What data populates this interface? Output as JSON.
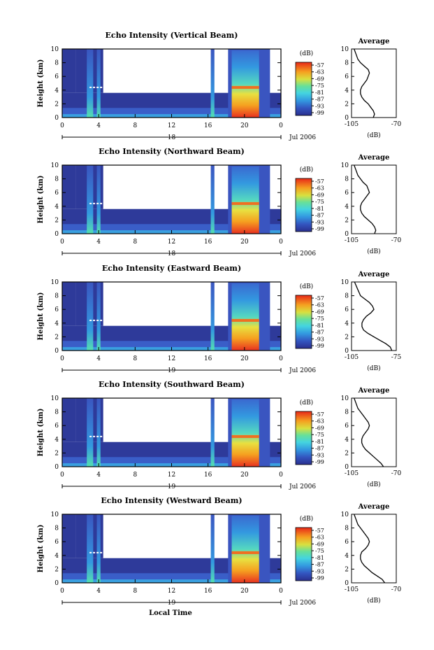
{
  "figure": {
    "xlabel": "Local Time"
  },
  "chart_data": [
    {
      "type": "heatmap",
      "title": "Echo Intensity (Vertical Beam)",
      "ylabel": "Height (km)",
      "ylim": [
        0,
        10
      ],
      "yticks": [
        "0",
        "2",
        "4",
        "6",
        "8",
        "10"
      ],
      "xlim": [
        0,
        24
      ],
      "xticks": [
        "0",
        "4",
        "8",
        "12",
        "16",
        "20",
        "0"
      ],
      "date_mark": "18",
      "date_label": "Jul 2006",
      "colorbar": {
        "title": "(dB)",
        "ticks": [
          "-57",
          "-63",
          "-69",
          "-75",
          "-81",
          "-87",
          "-93",
          "-99"
        ]
      },
      "profile": {
        "title": "Average",
        "xlabel": "(dB)",
        "xticks": [
          "-105",
          "-70"
        ],
        "xlim": [
          -105,
          -70
        ],
        "yticks": [
          "0",
          "2",
          "4",
          "6",
          "8",
          "10"
        ],
        "ylim": [
          0,
          10
        ],
        "x": [
          -88,
          -87,
          -88,
          -90,
          -92,
          -95,
          -97,
          -98,
          -98,
          -97,
          -95,
          -93,
          -92,
          -91,
          -92,
          -95,
          -98,
          -100,
          -101,
          -102,
          -103
        ],
        "y": [
          0,
          0.5,
          1,
          1.5,
          2,
          2.5,
          3,
          3.5,
          4,
          4.5,
          5,
          5.5,
          6,
          6.5,
          7,
          7.5,
          8,
          8.5,
          9,
          9.5,
          10
        ]
      }
    },
    {
      "type": "heatmap",
      "title": "Echo Intensity (Northward Beam)",
      "ylabel": "Height (km)",
      "ylim": [
        0,
        10
      ],
      "yticks": [
        "0",
        "2",
        "4",
        "6",
        "8",
        "10"
      ],
      "xlim": [
        0,
        24
      ],
      "xticks": [
        "0",
        "4",
        "8",
        "12",
        "16",
        "20",
        "0"
      ],
      "date_mark": "18",
      "date_label": "Jul 2006",
      "colorbar": {
        "title": "(dB)",
        "ticks": [
          "-57",
          "-63",
          "-69",
          "-75",
          "-81",
          "-87",
          "-93",
          "-99"
        ]
      },
      "profile": {
        "title": "Average",
        "xlabel": "(dB)",
        "xticks": [
          "-105",
          "-70"
        ],
        "xlim": [
          -105,
          -70
        ],
        "yticks": [
          "0",
          "2",
          "4",
          "6",
          "8",
          "10"
        ],
        "ylim": [
          0,
          10
        ],
        "x": [
          -87,
          -86,
          -87,
          -89,
          -92,
          -95,
          -97,
          -98,
          -98,
          -97,
          -95,
          -93,
          -91,
          -92,
          -93,
          -96,
          -98,
          -100,
          -101,
          -102,
          -103
        ],
        "y": [
          0,
          0.5,
          1,
          1.5,
          2,
          2.5,
          3,
          3.5,
          4,
          4.5,
          5,
          5.5,
          6,
          6.5,
          7,
          7.5,
          8,
          8.5,
          9,
          9.5,
          10
        ]
      }
    },
    {
      "type": "heatmap",
      "title": "Echo Intensity (Eastward Beam)",
      "ylabel": "Height (km)",
      "ylim": [
        0,
        10
      ],
      "yticks": [
        "0",
        "2",
        "4",
        "6",
        "8",
        "10"
      ],
      "xlim": [
        0,
        24
      ],
      "xticks": [
        "0",
        "4",
        "8",
        "12",
        "16",
        "20",
        "0"
      ],
      "date_mark": "19",
      "date_label": "Jul 2006",
      "colorbar": {
        "title": "(dB)",
        "ticks": [
          "-57",
          "-63",
          "-69",
          "-75",
          "-81",
          "-87",
          "-93",
          "-99"
        ]
      },
      "profile": {
        "title": "Average",
        "xlabel": "(dB)",
        "xticks": [
          "-105",
          "-75"
        ],
        "xlim": [
          -105,
          -75
        ],
        "yticks": [
          "0",
          "2",
          "4",
          "6",
          "8",
          "10"
        ],
        "ylim": [
          0,
          10
        ],
        "x": [
          -78,
          -79,
          -82,
          -86,
          -90,
          -94,
          -97,
          -98,
          -98,
          -97,
          -95,
          -92,
          -90,
          -91,
          -93,
          -96,
          -99,
          -100,
          -101,
          -102,
          -103
        ],
        "y": [
          0,
          0.5,
          1,
          1.5,
          2,
          2.5,
          3,
          3.5,
          4,
          4.5,
          5,
          5.5,
          6,
          6.5,
          7,
          7.5,
          8,
          8.5,
          9,
          9.5,
          10
        ]
      }
    },
    {
      "type": "heatmap",
      "title": "Echo Intensity (Southward Beam)",
      "ylabel": "Height (km)",
      "ylim": [
        0,
        10
      ],
      "yticks": [
        "0",
        "2",
        "4",
        "6",
        "8",
        "10"
      ],
      "xlim": [
        0,
        24
      ],
      "xticks": [
        "0",
        "4",
        "8",
        "12",
        "16",
        "20",
        "0"
      ],
      "date_mark": "19",
      "date_label": "Jul 2006",
      "colorbar": {
        "title": "(dB)",
        "ticks": [
          "-57",
          "-63",
          "-69",
          "-75",
          "-81",
          "-87",
          "-93",
          "-99"
        ]
      },
      "profile": {
        "title": "Average",
        "xlabel": "(dB)",
        "xticks": [
          "-105",
          "-70"
        ],
        "xlim": [
          -105,
          -70
        ],
        "yticks": [
          "0",
          "2",
          "4",
          "6",
          "8",
          "10"
        ],
        "ylim": [
          0,
          10
        ],
        "x": [
          -80,
          -82,
          -85,
          -88,
          -91,
          -94,
          -96,
          -97,
          -97,
          -96,
          -94,
          -92,
          -91,
          -92,
          -94,
          -96,
          -98,
          -100,
          -101,
          -102,
          -103
        ],
        "y": [
          0,
          0.5,
          1,
          1.5,
          2,
          2.5,
          3,
          3.5,
          4,
          4.5,
          5,
          5.5,
          6,
          6.5,
          7,
          7.5,
          8,
          8.5,
          9,
          9.5,
          10
        ]
      }
    },
    {
      "type": "heatmap",
      "title": "Echo Intensity (Westward Beam)",
      "ylabel": "Height (km)",
      "ylim": [
        0,
        10
      ],
      "yticks": [
        "0",
        "2",
        "4",
        "6",
        "8",
        "10"
      ],
      "xlim": [
        0,
        24
      ],
      "xticks": [
        "0",
        "4",
        "8",
        "12",
        "16",
        "20",
        "0"
      ],
      "date_mark": "19",
      "date_label": "Jul 2006",
      "colorbar": {
        "title": "(dB)",
        "ticks": [
          "-57",
          "-63",
          "-69",
          "-75",
          "-81",
          "-87",
          "-93",
          "-99"
        ]
      },
      "profile": {
        "title": "Average",
        "xlabel": "(dB)",
        "xticks": [
          "-105",
          "-70"
        ],
        "xlim": [
          -105,
          -70
        ],
        "yticks": [
          "0",
          "2",
          "4",
          "6",
          "8",
          "10"
        ],
        "ylim": [
          0,
          10
        ],
        "x": [
          -79,
          -81,
          -85,
          -89,
          -92,
          -95,
          -97,
          -98,
          -98,
          -97,
          -94,
          -92,
          -91,
          -92,
          -94,
          -96,
          -98,
          -100,
          -101,
          -102,
          -103
        ],
        "y": [
          0,
          0.5,
          1,
          1.5,
          2,
          2.5,
          3,
          3.5,
          4,
          4.5,
          5,
          5.5,
          6,
          6.5,
          7,
          7.5,
          8,
          8.5,
          9,
          9.5,
          10
        ]
      }
    }
  ]
}
